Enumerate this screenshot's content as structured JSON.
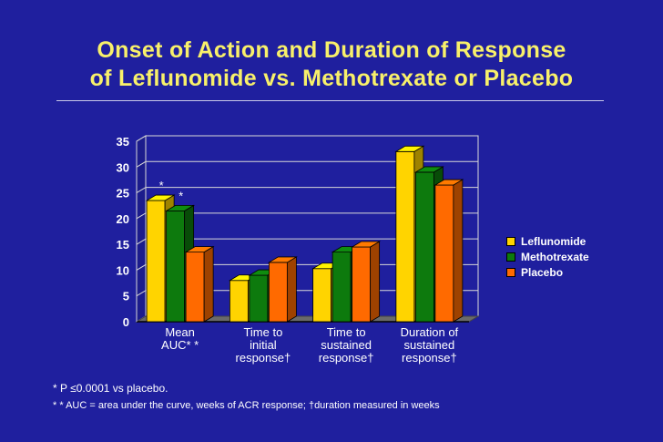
{
  "title": {
    "line1": "Onset of Action and Duration of Response",
    "line2": "of Leflunomide vs. Methotrexate or Placebo"
  },
  "chart_data": {
    "type": "bar",
    "categories": [
      [
        "Mean",
        "AUC* *"
      ],
      [
        "Time to",
        "initial",
        "response†"
      ],
      [
        "Time to",
        "sustained",
        "response†"
      ],
      [
        "Duration of",
        "sustained",
        "response†"
      ]
    ],
    "series": [
      {
        "name": "Leflunomide",
        "values": [
          23.5,
          8,
          10.3,
          33
        ],
        "color": "#ffd400"
      },
      {
        "name": "Methotrexate",
        "values": [
          21.5,
          9,
          13.5,
          29
        ],
        "color": "#0d7a0d"
      },
      {
        "name": "Placebo",
        "values": [
          13.5,
          11.5,
          14.5,
          26.5
        ],
        "color": "#ff6a00"
      }
    ],
    "ylim": [
      0,
      35
    ],
    "yticks": [
      0,
      5,
      10,
      15,
      20,
      25,
      30,
      35
    ],
    "grid": true,
    "legend_position": "right",
    "annotations": [
      {
        "category": 0,
        "series": 0,
        "text": "*"
      },
      {
        "category": 0,
        "series": 1,
        "text": "*"
      }
    ]
  },
  "footnotes": {
    "line1": "* P ≤0.0001 vs placebo.",
    "line2": "* * AUC =  area under the curve, weeks of ACR response; †duration measured in weeks"
  }
}
